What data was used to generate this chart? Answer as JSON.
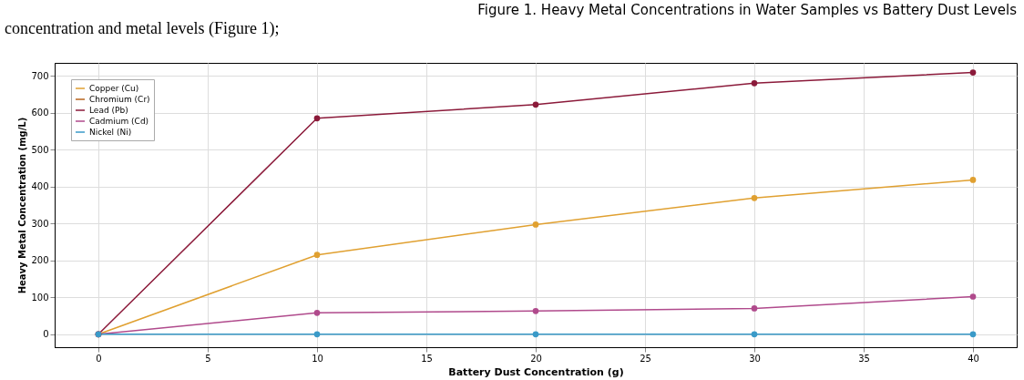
{
  "chart_data": {
    "type": "line",
    "title": "Figure 1. Heavy Metal Concentrations in Water Samples vs Battery Dust Levels",
    "xlabel": "Battery Dust Concentration (g)",
    "ylabel": "Heavy Metal Concentration (mg/L)",
    "annotations": [
      "concentration and metal levels (Figure 1);"
    ],
    "x": [
      0,
      10,
      20,
      30,
      40
    ],
    "series": [
      {
        "name": "Copper (Cu)",
        "color": "#e0a030",
        "values": [
          0,
          215,
          297,
          369,
          418
        ]
      },
      {
        "name": "Chromium (Cr)",
        "color": "#b8641e",
        "values": [
          null,
          null,
          null,
          null,
          null
        ]
      },
      {
        "name": "Lead (Pb)",
        "color": "#8b1a3a",
        "values": [
          0,
          585,
          622,
          680,
          709
        ]
      },
      {
        "name": "Cadmium (Cd)",
        "color": "#b04a8c",
        "values": [
          0,
          58,
          63,
          70,
          102
        ]
      },
      {
        "name": "Nickel (Ni)",
        "color": "#3a9ac8",
        "values": [
          0,
          0,
          0,
          0,
          0
        ]
      }
    ],
    "xlim": [
      -2,
      42
    ],
    "xticks": [
      0,
      5,
      10,
      15,
      20,
      25,
      30,
      35,
      40
    ],
    "ylim": [
      -35,
      735
    ],
    "yticks": [
      0,
      100,
      200,
      300,
      400,
      500,
      600,
      700
    ],
    "grid": true,
    "legend": "top left",
    "marker": "circle",
    "line_style": "solid"
  }
}
